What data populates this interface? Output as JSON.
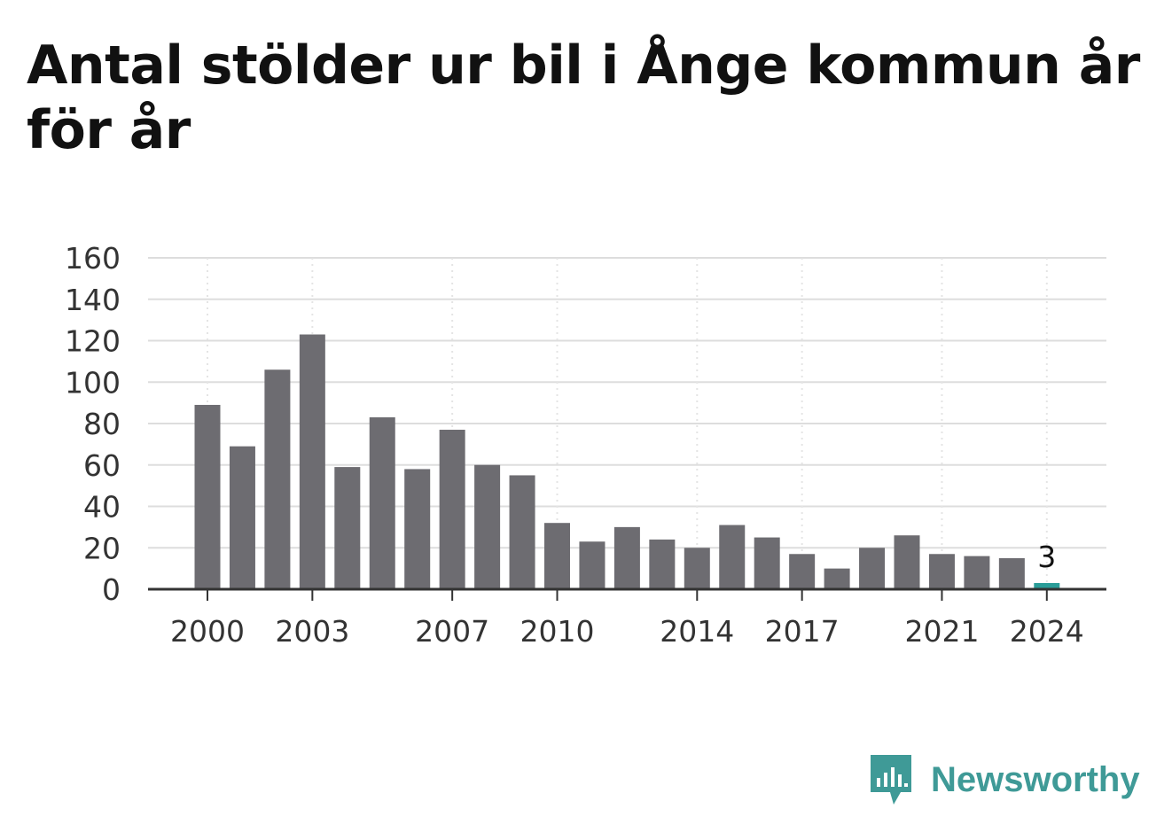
{
  "header": {
    "title": "Antal stölder ur bil i Ånge kommun år för år"
  },
  "brand": {
    "name": "Newsworthy",
    "color": "#3f9a97"
  },
  "chart_data": {
    "type": "bar",
    "title": "Antal stölder ur bil i Ånge kommun år för år",
    "xlabel": "",
    "ylabel": "",
    "categories": [
      2000,
      2001,
      2002,
      2003,
      2004,
      2005,
      2006,
      2007,
      2008,
      2009,
      2010,
      2011,
      2012,
      2013,
      2014,
      2015,
      2016,
      2017,
      2018,
      2019,
      2020,
      2021,
      2022,
      2023,
      2024
    ],
    "values": [
      89,
      69,
      106,
      123,
      59,
      83,
      58,
      77,
      60,
      55,
      32,
      23,
      30,
      24,
      20,
      31,
      25,
      17,
      10,
      20,
      26,
      17,
      16,
      15,
      3
    ],
    "x_tick_labels": [
      "2000",
      "2003",
      "2007",
      "2010",
      "2014",
      "2017",
      "2021",
      "2024"
    ],
    "y_ticks": [
      "0",
      "20",
      "40",
      "60",
      "80",
      "100",
      "120",
      "140",
      "160"
    ],
    "ylim": [
      0,
      160
    ],
    "grid": true,
    "legend": "none",
    "highlight": {
      "category": 2024,
      "label": "3",
      "color": "#2a9d98"
    },
    "bar_color": "#6d6c71"
  }
}
